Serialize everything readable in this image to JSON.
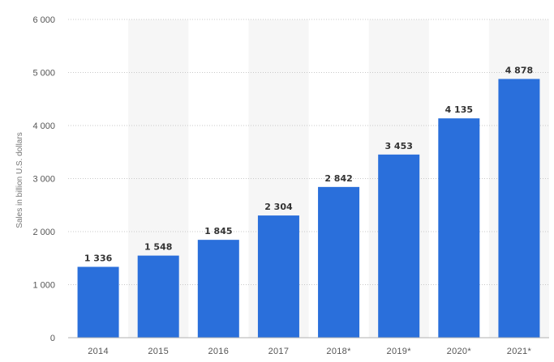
{
  "chart_data": {
    "type": "bar",
    "categories": [
      "2014",
      "2015",
      "2016",
      "2017",
      "2018*",
      "2019*",
      "2020*",
      "2021*"
    ],
    "values": [
      1336,
      1548,
      1845,
      2304,
      2842,
      3453,
      4135,
      4878
    ],
    "value_labels": [
      "1 336",
      "1 548",
      "1 845",
      "2 304",
      "2 842",
      "3 453",
      "4 135",
      "4 878"
    ],
    "title": "",
    "xlabel": "",
    "ylabel": "Sales in billion U.S. dollars",
    "ylim": [
      0,
      6000
    ],
    "yticks": [
      0,
      1000,
      2000,
      3000,
      4000,
      5000,
      6000
    ],
    "ytick_labels": [
      "0",
      "1 000",
      "2 000",
      "3 000",
      "4 000",
      "5 000",
      "6 000"
    ],
    "grid": true,
    "bar_color": "#2a6fdb",
    "band_color": "#f6f6f6"
  }
}
